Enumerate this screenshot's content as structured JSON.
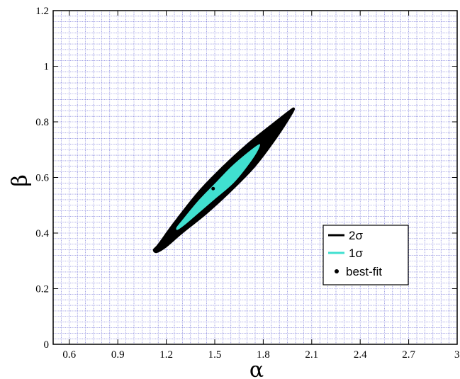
{
  "chart_data": {
    "type": "scatter",
    "xlabel": "α",
    "ylabel": "β",
    "xlim": [
      0.5,
      3.0
    ],
    "ylim": [
      0.0,
      1.2
    ],
    "x_ticks": [
      0.6,
      0.9,
      1.2,
      1.5,
      1.8,
      2.1,
      2.4,
      2.7,
      3.0
    ],
    "x_tick_labels": [
      "0.6",
      "0.9",
      "1.2",
      "1.5",
      "1.8",
      "2.1",
      "2.4",
      "2.7",
      "3"
    ],
    "y_ticks": [
      0.0,
      0.2,
      0.4,
      0.6,
      0.8,
      1.0,
      1.2
    ],
    "y_tick_labels": [
      "0",
      "0.2",
      "0.4",
      "0.6",
      "0.8",
      "1",
      "1.2"
    ],
    "grid": true,
    "grid_minor_x_step": 0.05,
    "grid_minor_y_step": 0.02,
    "legend_position": "lower-right",
    "series": [
      {
        "name": "2σ",
        "kind": "contour",
        "color": "#000000",
        "points": [
          [
            1.12,
            0.34
          ],
          [
            1.15,
            0.36
          ],
          [
            1.25,
            0.44
          ],
          [
            1.4,
            0.55
          ],
          [
            1.55,
            0.64
          ],
          [
            1.7,
            0.72
          ],
          [
            1.85,
            0.79
          ],
          [
            1.96,
            0.84
          ],
          [
            1.99,
            0.85
          ],
          [
            1.98,
            0.83
          ],
          [
            1.88,
            0.74
          ],
          [
            1.75,
            0.64
          ],
          [
            1.6,
            0.55
          ],
          [
            1.45,
            0.47
          ],
          [
            1.3,
            0.4
          ],
          [
            1.2,
            0.35
          ],
          [
            1.14,
            0.33
          ]
        ]
      },
      {
        "name": "1σ",
        "kind": "contour",
        "color": "#40E0D0",
        "points": [
          [
            1.26,
            0.42
          ],
          [
            1.3,
            0.45
          ],
          [
            1.4,
            0.52
          ],
          [
            1.5,
            0.58
          ],
          [
            1.6,
            0.64
          ],
          [
            1.7,
            0.69
          ],
          [
            1.77,
            0.72
          ],
          [
            1.78,
            0.71
          ],
          [
            1.73,
            0.66
          ],
          [
            1.62,
            0.58
          ],
          [
            1.5,
            0.52
          ],
          [
            1.4,
            0.47
          ],
          [
            1.32,
            0.43
          ],
          [
            1.27,
            0.41
          ]
        ]
      },
      {
        "name": "best-fit",
        "kind": "point",
        "color": "#000000",
        "points": [
          [
            1.49,
            0.56
          ]
        ]
      }
    ]
  },
  "colors": {
    "grid": "#6f6fd8",
    "axes": "#000000"
  }
}
